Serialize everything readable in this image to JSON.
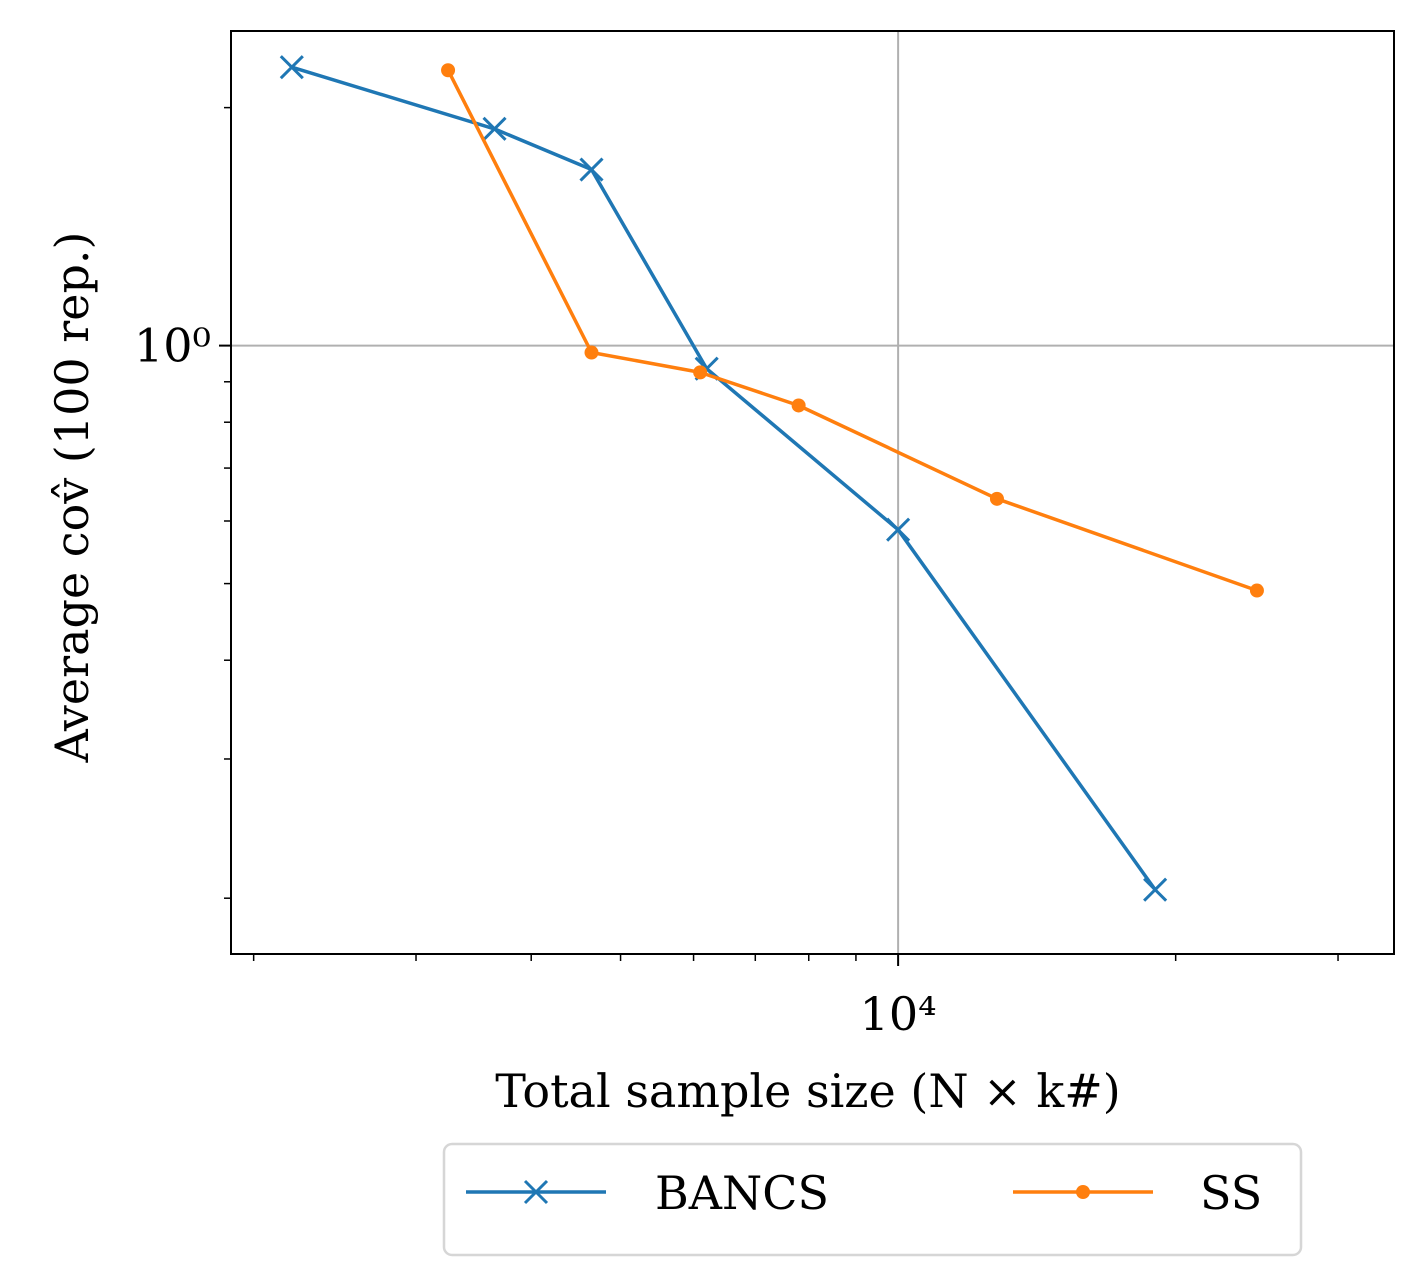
{
  "chart_data": {
    "type": "line",
    "xscale": "log",
    "yscale": "log",
    "xlim": [
      1890,
      34500
    ],
    "ylim": [
      0.17,
      2.5
    ],
    "xlabel": "Total sample size (N × k#)",
    "ylabel": "Average cov̂ (100 rep.)",
    "xtick_major": [
      {
        "value": 10000,
        "label": "10⁴"
      }
    ],
    "ytick_major": [
      {
        "value": 1,
        "label": "10⁰"
      }
    ],
    "grid": true,
    "legend_position": "bottom-center",
    "legend_columns": 2,
    "series": [
      {
        "name": "BANCS",
        "color": "#1f77b4",
        "marker": "x",
        "x": [
          2200,
          3650,
          4650,
          6200,
          10000,
          19000
        ],
        "y": [
          2.25,
          1.88,
          1.67,
          0.935,
          0.585,
          0.205
        ]
      },
      {
        "name": "SS",
        "color": "#ff7f0e",
        "marker": "dot",
        "x": [
          3250,
          4650,
          6100,
          7800,
          12800,
          24500
        ],
        "y": [
          2.23,
          0.98,
          0.925,
          0.84,
          0.64,
          0.49
        ]
      }
    ]
  }
}
